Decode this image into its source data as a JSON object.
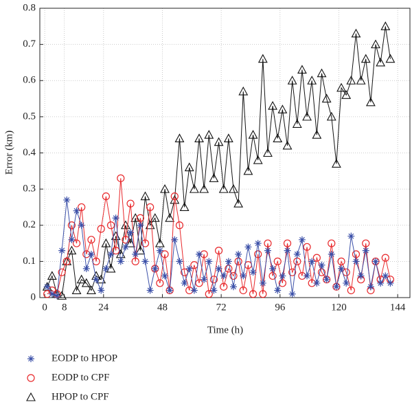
{
  "chart_data": {
    "type": "line",
    "xlabel": "Time (h)",
    "ylabel": "Error (km)",
    "xlim": [
      -2,
      149
    ],
    "ylim": [
      0,
      0.8
    ],
    "xticks": [
      0,
      8,
      24,
      48,
      72,
      96,
      120,
      144
    ],
    "yticks": [
      0,
      0.1,
      0.2,
      0.3,
      0.4,
      0.5,
      0.6,
      0.7,
      0.8
    ],
    "grid": true,
    "legend": "below",
    "x": [
      1,
      3,
      5,
      7,
      9,
      11,
      13,
      15,
      17,
      19,
      21,
      23,
      25,
      27,
      29,
      31,
      33,
      35,
      37,
      39,
      41,
      43,
      45,
      47,
      49,
      51,
      53,
      55,
      57,
      59,
      61,
      63,
      65,
      67,
      69,
      71,
      73,
      75,
      77,
      79,
      81,
      83,
      85,
      87,
      89,
      91,
      93,
      95,
      97,
      99,
      101,
      103,
      105,
      107,
      109,
      111,
      113,
      115,
      117,
      119,
      121,
      123,
      125,
      127,
      129,
      131,
      133,
      135,
      137,
      139,
      141
    ],
    "series": [
      {
        "name": "EODP to HPOP",
        "color": "#3a4fa8",
        "marker": "star",
        "values": [
          0.03,
          0.01,
          0.005,
          0.13,
          0.27,
          0.16,
          0.24,
          0.2,
          0.08,
          0.12,
          0.05,
          0.02,
          0.08,
          0.12,
          0.22,
          0.1,
          0.14,
          0.18,
          0.12,
          0.2,
          0.1,
          0.02,
          0.08,
          0.13,
          0.06,
          0.02,
          0.16,
          0.1,
          0.04,
          0.08,
          0.02,
          0.12,
          0.05,
          0.1,
          0.02,
          0.08,
          0.06,
          0.1,
          0.03,
          0.12,
          0.06,
          0.14,
          0.07,
          0.15,
          0.04,
          0.13,
          0.08,
          0.02,
          0.06,
          0.13,
          0.01,
          0.12,
          0.16,
          0.06,
          0.1,
          0.04,
          0.09,
          0.05,
          0.12,
          0.03,
          0.08,
          0.04,
          0.17,
          0.1,
          0.06,
          0.13,
          0.03,
          0.1,
          0.04,
          0.06,
          0.04
        ]
      },
      {
        "name": "EODP to CPF",
        "color": "#e8272a",
        "marker": "circle",
        "values": [
          0.01,
          0.02,
          0.01,
          0.07,
          0.1,
          0.2,
          0.15,
          0.25,
          0.12,
          0.16,
          0.1,
          0.19,
          0.28,
          0.2,
          0.13,
          0.33,
          0.16,
          0.26,
          0.1,
          0.22,
          0.15,
          0.25,
          0.08,
          0.04,
          0.12,
          0.02,
          0.28,
          0.2,
          0.07,
          0.02,
          0.09,
          0.04,
          0.12,
          0.01,
          0.05,
          0.13,
          0.03,
          0.08,
          0.06,
          0.1,
          0.02,
          0.09,
          0.01,
          0.12,
          0.01,
          0.15,
          0.06,
          0.1,
          0.04,
          0.15,
          0.07,
          0.1,
          0.06,
          0.14,
          0.04,
          0.11,
          0.07,
          0.05,
          0.15,
          0.03,
          0.1,
          0.07,
          0.02,
          0.12,
          0.05,
          0.15,
          0.02,
          0.1,
          0.05,
          0.11,
          0.05
        ]
      },
      {
        "name": "HPOP to CPF",
        "color": "#111111",
        "marker": "triangle",
        "values": [
          0.03,
          0.06,
          0.01,
          0.005,
          0.1,
          0.13,
          0.02,
          0.05,
          0.04,
          0.02,
          0.06,
          0.05,
          0.15,
          0.08,
          0.17,
          0.12,
          0.2,
          0.15,
          0.22,
          0.13,
          0.28,
          0.2,
          0.22,
          0.15,
          0.3,
          0.22,
          0.27,
          0.44,
          0.25,
          0.36,
          0.3,
          0.44,
          0.3,
          0.45,
          0.33,
          0.43,
          0.3,
          0.44,
          0.3,
          0.26,
          0.57,
          0.35,
          0.45,
          0.38,
          0.66,
          0.4,
          0.53,
          0.44,
          0.52,
          0.42,
          0.6,
          0.48,
          0.63,
          0.5,
          0.6,
          0.45,
          0.62,
          0.55,
          0.5,
          0.37,
          0.58,
          0.56,
          0.6,
          0.73,
          0.6,
          0.66,
          0.54,
          0.7,
          0.65,
          0.75,
          0.66
        ]
      }
    ]
  }
}
